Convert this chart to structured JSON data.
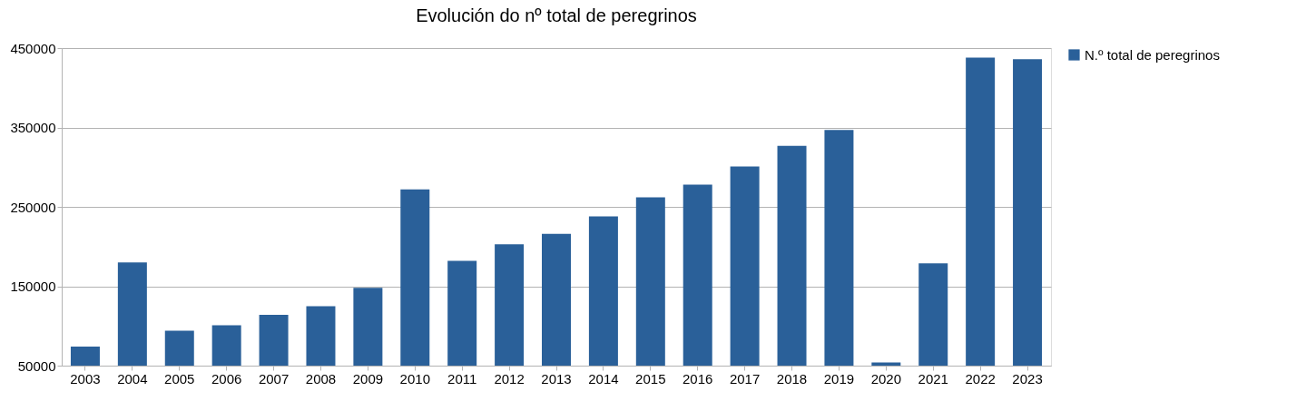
{
  "chart_data": {
    "type": "bar",
    "title": "Evolución do nº total de peregrinos",
    "categories": [
      "2003",
      "2004",
      "2005",
      "2006",
      "2007",
      "2008",
      "2009",
      "2010",
      "2011",
      "2012",
      "2013",
      "2014",
      "2015",
      "2016",
      "2017",
      "2018",
      "2019",
      "2020",
      "2021",
      "2022",
      "2023"
    ],
    "series": [
      {
        "name": "N.º total de peregrinos",
        "color": "#2a6099",
        "values": [
          74000,
          180000,
          94000,
          101000,
          114000,
          125000,
          148000,
          272000,
          182000,
          203000,
          216000,
          238000,
          262000,
          278000,
          301000,
          327000,
          347000,
          54000,
          179000,
          438000,
          436000
        ]
      }
    ],
    "ylim": [
      50000,
      450000
    ],
    "yticks": [
      50000,
      150000,
      250000,
      350000,
      450000
    ],
    "grid": "y",
    "legend": "right"
  }
}
